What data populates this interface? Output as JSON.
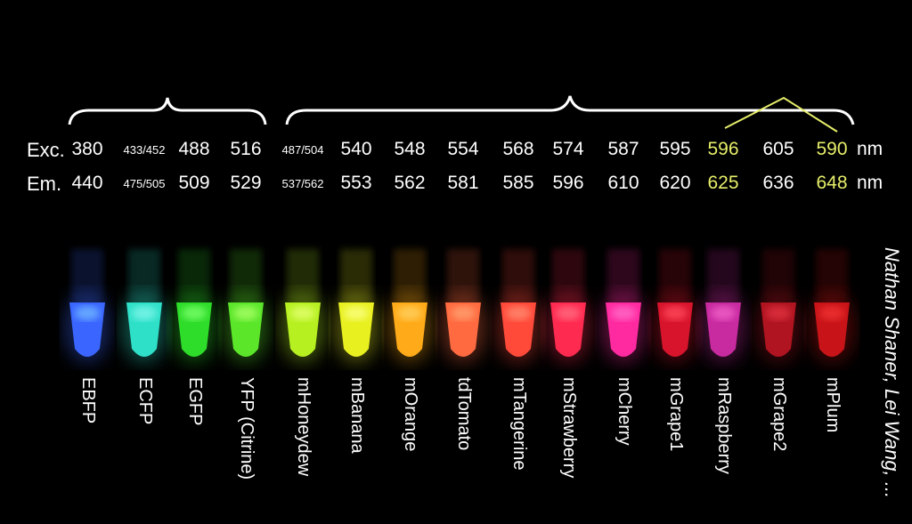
{
  "rows": {
    "exc_label": "Exc.",
    "em_label": "Em.",
    "unit": "nm"
  },
  "highlight_color": "#e6ee6a",
  "proteins": [
    {
      "name": "EBFP",
      "exc": "380",
      "em": "440",
      "color": "#3a66ff",
      "glow": "#6fb6ff",
      "small": false,
      "hl": false
    },
    {
      "name": "ECFP",
      "exc": "433/452",
      "em": "475/505",
      "color": "#2fe0c8",
      "glow": "#7ff5ea",
      "small": true,
      "hl": false
    },
    {
      "name": "EGFP",
      "exc": "488",
      "em": "509",
      "color": "#2edc2a",
      "glow": "#7aff6a",
      "small": false,
      "hl": false
    },
    {
      "name": "YFP (Citrine)",
      "exc": "516",
      "em": "529",
      "color": "#5be62a",
      "glow": "#a9ff66",
      "small": false,
      "hl": false
    },
    {
      "name": "mHoneydew",
      "exc": "487/504",
      "em": "537/562",
      "color": "#b6f020",
      "glow": "#e2ff70",
      "small": true,
      "hl": false
    },
    {
      "name": "mBanana",
      "exc": "540",
      "em": "553",
      "color": "#e8f020",
      "glow": "#faff80",
      "small": false,
      "hl": false
    },
    {
      "name": "mOrange",
      "exc": "548",
      "em": "562",
      "color": "#ffaa18",
      "glow": "#ffd060",
      "small": false,
      "hl": false
    },
    {
      "name": "tdTomato",
      "exc": "554",
      "em": "581",
      "color": "#ff6a40",
      "glow": "#ffa070",
      "small": false,
      "hl": false
    },
    {
      "name": "mTangerine",
      "exc": "568",
      "em": "585",
      "color": "#ff4a3a",
      "glow": "#ff8a70",
      "small": false,
      "hl": false
    },
    {
      "name": "mStrawberry",
      "exc": "574",
      "em": "596",
      "color": "#ff2a50",
      "glow": "#ff6a80",
      "small": false,
      "hl": false
    },
    {
      "name": "mCherry",
      "exc": "587",
      "em": "610",
      "color": "#ff2aa0",
      "glow": "#ff6ac8",
      "small": false,
      "hl": false
    },
    {
      "name": "mGrape1",
      "exc": "595",
      "em": "620",
      "color": "#d8142c",
      "glow": "#ff4a5a",
      "small": false,
      "hl": false
    },
    {
      "name": "mRaspberry",
      "exc": "596",
      "em": "625",
      "color": "#c82aa0",
      "glow": "#f060c8",
      "small": false,
      "hl": true
    },
    {
      "name": "mGrape2",
      "exc": "605",
      "em": "636",
      "color": "#b01420",
      "glow": "#e03040",
      "small": false,
      "hl": false
    },
    {
      "name": "mPlum",
      "exc": "590",
      "em": "648",
      "color": "#c81418",
      "glow": "#f03030",
      "small": false,
      "hl": true
    }
  ],
  "credit": "Nathan Shaner, Lei Wang, ..."
}
